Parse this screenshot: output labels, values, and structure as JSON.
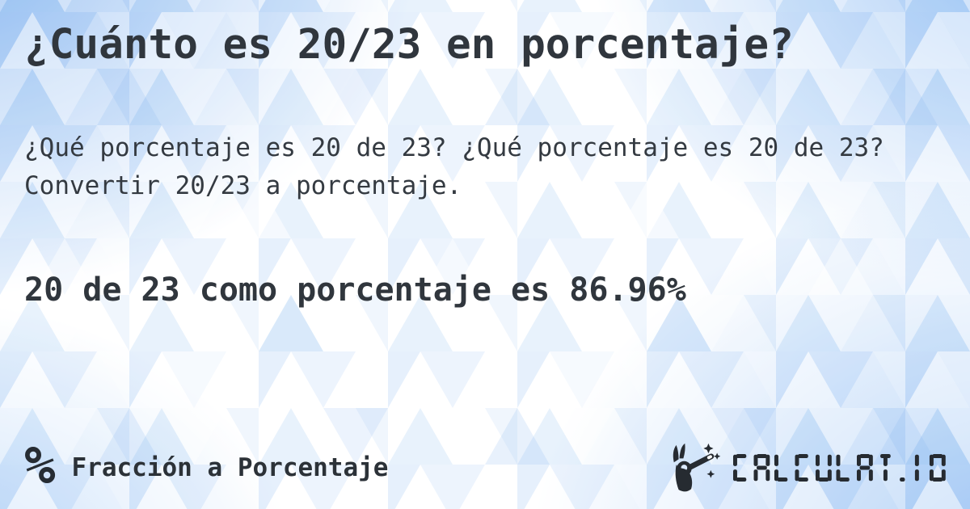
{
  "page": {
    "title": "¿Cuánto es 20/23 en porcentaje?",
    "description": "¿Qué porcentaje es 20 de 23? ¿Qué porcentaje es 20 de 23? Convertir 20/23 a porcentaje.",
    "answer": "20 de 23 como porcentaje es 86.96%"
  },
  "footer": {
    "category_symbol": "%",
    "category_label": "Fracción a Porcentaje",
    "brand": "CALCULAT.IO"
  },
  "colors": {
    "text": "#30363d",
    "accent_blue": "#9cc3f1",
    "background_white": "#ffffff",
    "logo_dark": "#262b31"
  }
}
